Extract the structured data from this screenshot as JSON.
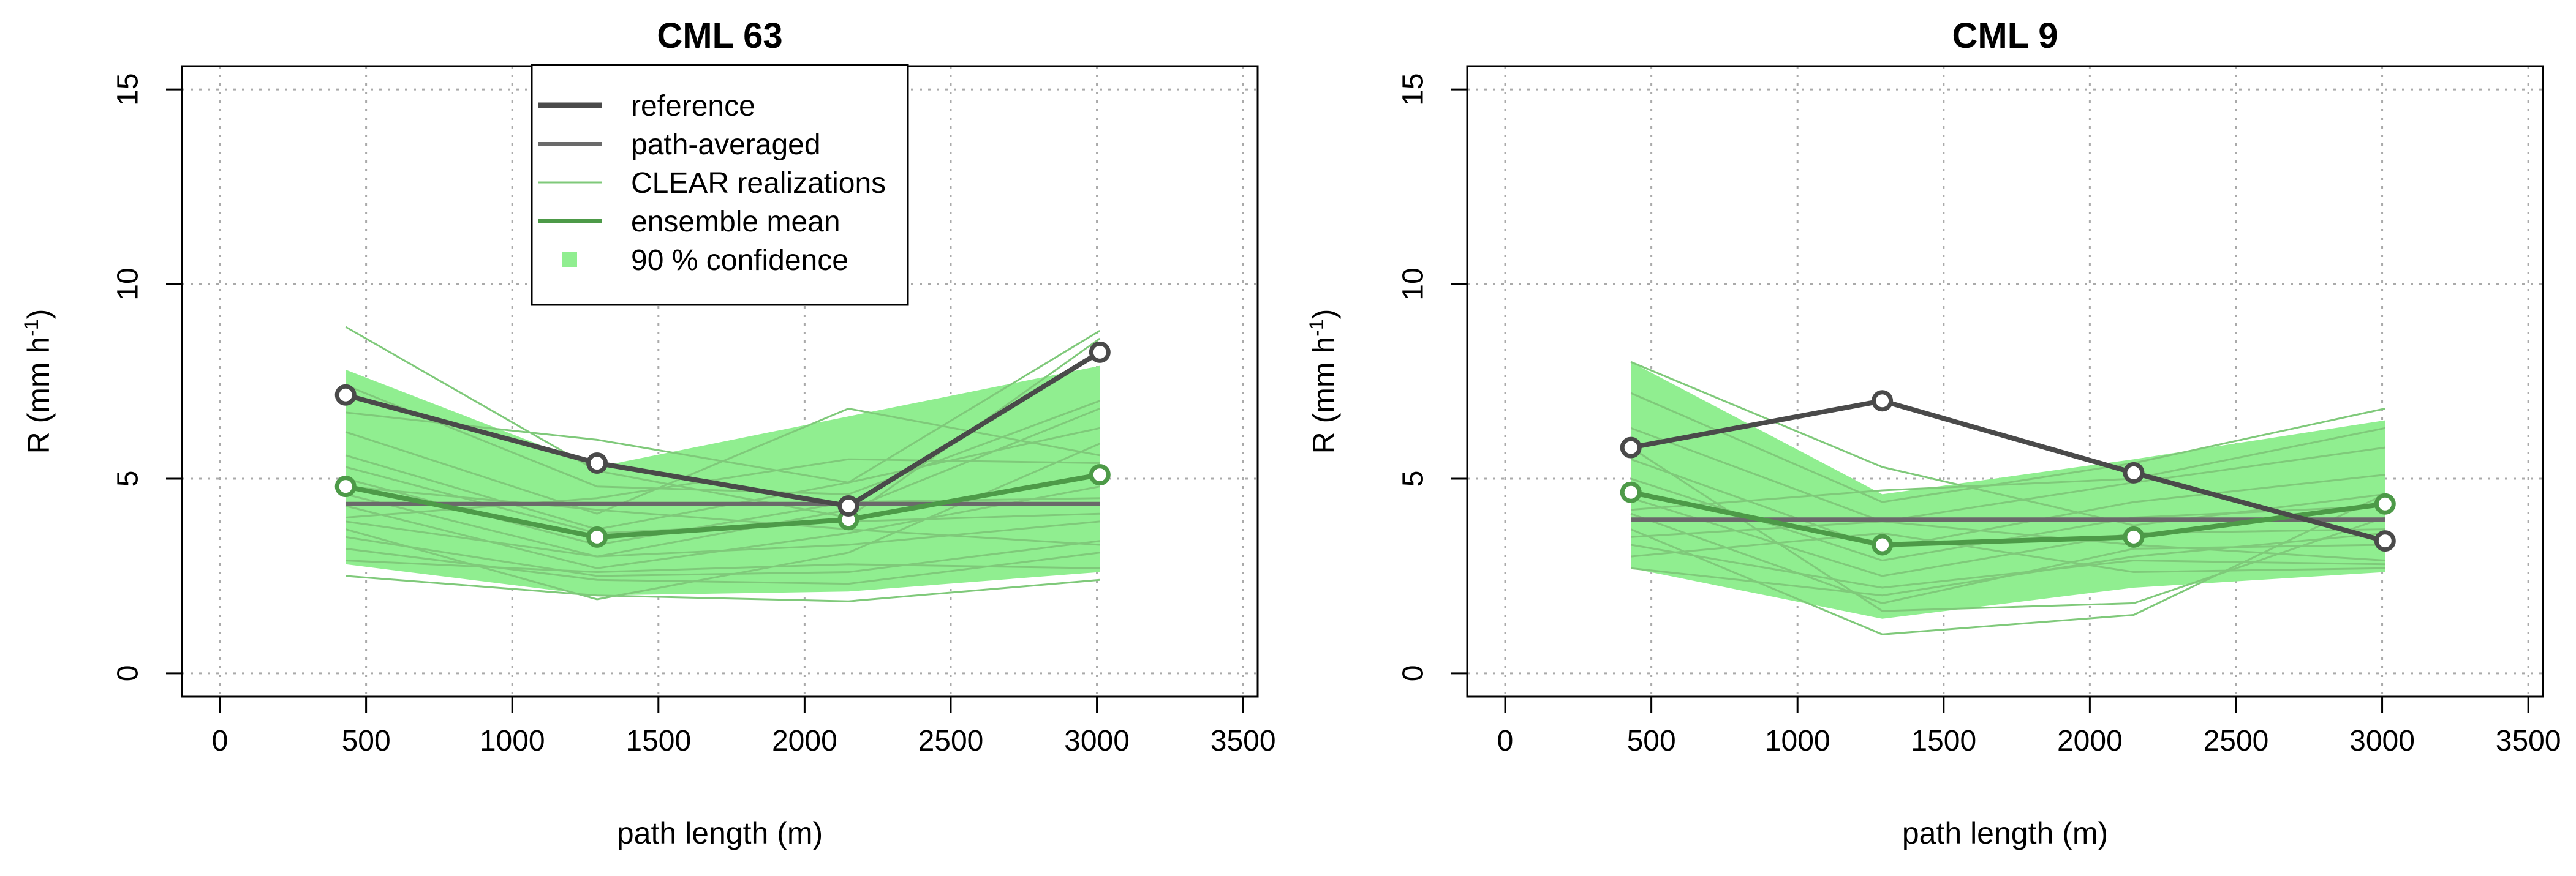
{
  "colors": {
    "reference": "#4a4a4a",
    "path_averaged": "#6a6a6a",
    "realization": "#7fc97a",
    "ensemble": "#4d9a48",
    "confidence": "#90ee90",
    "grid": "#aaaaaa"
  },
  "legend": {
    "items": [
      {
        "label": "reference",
        "style": "reference"
      },
      {
        "label": "path-averaged",
        "style": "path_averaged"
      },
      {
        "label": "CLEAR realizations",
        "style": "realization"
      },
      {
        "label": "ensemble mean",
        "style": "ensemble"
      },
      {
        "label": "90 % confidence",
        "style": "confidence"
      }
    ]
  },
  "chart_data": [
    {
      "type": "line",
      "title": "CML 63",
      "xlabel": "path length (m)",
      "ylabel": "R (mm h",
      "ylabel_sup": "-1",
      "ylabel_close": ")",
      "xlim": [
        -130,
        3550
      ],
      "ylim": [
        -0.6,
        15.6
      ],
      "xticks": [
        0,
        500,
        1000,
        1500,
        2000,
        2500,
        3000,
        3500
      ],
      "yticks": [
        0,
        5,
        10,
        15
      ],
      "grid": true,
      "legend_position": "top-center",
      "x": [
        430,
        1290,
        2150,
        3010
      ],
      "reference": [
        7.15,
        5.4,
        4.3,
        8.25
      ],
      "path_averaged": 4.35,
      "ensemble_mean": [
        4.8,
        3.5,
        3.95,
        5.1
      ],
      "confidence_upper": [
        7.8,
        5.3,
        6.6,
        7.9
      ],
      "confidence_lower": [
        2.8,
        2.0,
        2.1,
        2.6
      ],
      "realizations": [
        [
          8.9,
          5.2,
          4.0,
          8.6
        ],
        [
          7.4,
          4.8,
          4.6,
          7.0
        ],
        [
          6.2,
          4.1,
          6.8,
          5.6
        ],
        [
          5.6,
          3.7,
          4.9,
          6.3
        ],
        [
          5.0,
          3.3,
          4.4,
          4.5
        ],
        [
          4.6,
          3.0,
          4.2,
          6.8
        ],
        [
          4.3,
          2.7,
          3.6,
          4.8
        ],
        [
          3.9,
          3.0,
          3.3,
          3.9
        ],
        [
          3.5,
          2.5,
          2.6,
          3.4
        ],
        [
          3.2,
          2.4,
          2.3,
          3.1
        ],
        [
          2.9,
          2.6,
          2.8,
          2.7
        ],
        [
          2.5,
          2.0,
          1.85,
          2.4
        ],
        [
          6.7,
          6.0,
          4.9,
          8.8
        ],
        [
          4.0,
          4.5,
          5.5,
          5.4
        ],
        [
          5.3,
          3.6,
          3.9,
          4.1
        ],
        [
          3.7,
          1.9,
          3.1,
          5.9
        ],
        [
          4.8,
          4.2,
          3.7,
          3.3
        ]
      ]
    },
    {
      "type": "line",
      "title": "CML 9",
      "xlabel": "path length (m)",
      "ylabel": "R (mm h",
      "ylabel_sup": "-1",
      "ylabel_close": ")",
      "xlim": [
        -130,
        3550
      ],
      "ylim": [
        -0.6,
        15.6
      ],
      "xticks": [
        0,
        500,
        1000,
        1500,
        2000,
        2500,
        3000,
        3500
      ],
      "yticks": [
        0,
        5,
        10,
        15
      ],
      "grid": true,
      "x": [
        430,
        1290,
        2150,
        3010
      ],
      "reference": [
        5.8,
        7.0,
        5.15,
        3.4
      ],
      "path_averaged": 3.95,
      "ensemble_mean": [
        4.65,
        3.3,
        3.5,
        4.35
      ],
      "confidence_upper": [
        8.0,
        4.6,
        5.5,
        6.5
      ],
      "confidence_lower": [
        2.7,
        1.4,
        2.2,
        2.6
      ],
      "realizations": [
        [
          8.0,
          5.3,
          3.8,
          4.6
        ],
        [
          7.2,
          4.4,
          5.4,
          6.8
        ],
        [
          6.3,
          3.9,
          4.9,
          5.8
        ],
        [
          5.5,
          3.2,
          4.4,
          5.1
        ],
        [
          5.0,
          2.9,
          4.0,
          4.3
        ],
        [
          4.5,
          2.5,
          3.6,
          3.7
        ],
        [
          4.1,
          1.8,
          3.2,
          3.3
        ],
        [
          3.7,
          1.0,
          1.5,
          4.6
        ],
        [
          3.3,
          2.2,
          2.9,
          2.8
        ],
        [
          3.0,
          3.6,
          2.6,
          2.7
        ],
        [
          2.7,
          2.0,
          3.0,
          3.6
        ],
        [
          5.8,
          1.6,
          1.8,
          4.0
        ],
        [
          4.2,
          4.7,
          5.0,
          6.3
        ],
        [
          3.5,
          3.9,
          3.3,
          2.9
        ]
      ]
    }
  ]
}
